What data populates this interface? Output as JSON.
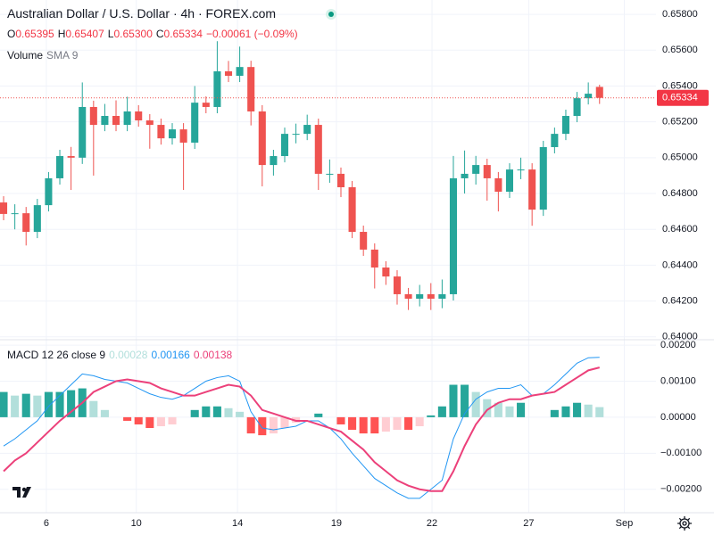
{
  "chart_data": [
    {
      "type": "candlestick",
      "title": "Australian Dollar / U.S. Dollar · 4h · FOREX.com",
      "legend": [
        {
          "key": "O",
          "value": "0.65395"
        },
        {
          "key": "H",
          "value": "0.65407"
        },
        {
          "key": "L",
          "value": "0.65300"
        },
        {
          "key": "C",
          "value": "0.65334"
        }
      ],
      "change": "−0.00061 (−0.09%)",
      "volume_label": "Volume",
      "volume_sma": "SMA 9",
      "last_price_label": "0.65334",
      "up_color": "#26a69a",
      "down_color": "#ef5350",
      "open": [
        0.6475,
        0.64686,
        0.6469,
        0.64586,
        0.64735,
        0.64885,
        0.65009,
        0.65,
        0.65283,
        0.65183,
        0.65233,
        0.65183,
        0.65258,
        0.65208,
        0.65183,
        0.65108,
        0.65158,
        0.65084,
        0.65307,
        0.65283,
        0.65482,
        0.65457,
        0.65506,
        0.65258,
        0.64959,
        0.65009,
        0.65133,
        0.65133,
        0.65183,
        0.6491,
        0.6491,
        0.64835,
        0.64586,
        0.64487,
        0.64387,
        0.64337,
        0.64238,
        0.64213,
        0.64238,
        0.64213,
        0.64238,
        0.64885,
        0.6491,
        0.64959,
        0.64885,
        0.6481,
        0.64934,
        0.64934,
        0.6471,
        0.65059,
        0.65133,
        0.65233,
        0.65332,
        0.65395
      ],
      "high": [
        0.64785,
        0.6474,
        0.64725,
        0.6477,
        0.6492,
        0.65044,
        0.6506,
        0.6542,
        0.65318,
        0.653,
        0.6532,
        0.6534,
        0.65293,
        0.65243,
        0.65218,
        0.65193,
        0.65193,
        0.654,
        0.65342,
        0.6565,
        0.6554,
        0.6562,
        0.65541,
        0.65293,
        0.65044,
        0.65168,
        0.6519,
        0.6524,
        0.65218,
        0.6499,
        0.64945,
        0.6487,
        0.64621,
        0.64522,
        0.64422,
        0.64372,
        0.64273,
        0.6429,
        0.643,
        0.6432,
        0.6501,
        0.6504,
        0.6501,
        0.64994,
        0.6492,
        0.64969,
        0.65,
        0.64969,
        0.65094,
        0.65168,
        0.65268,
        0.65367,
        0.6542,
        0.65407
      ],
      "low": [
        0.64651,
        0.646,
        0.6451,
        0.64551,
        0.647,
        0.6485,
        0.6482,
        0.64965,
        0.649,
        0.65148,
        0.65148,
        0.65148,
        0.65173,
        0.6505,
        0.65073,
        0.65073,
        0.6482,
        0.65049,
        0.65248,
        0.65248,
        0.65422,
        0.65422,
        0.6518,
        0.6484,
        0.649,
        0.64974,
        0.6508,
        0.65098,
        0.6482,
        0.6486,
        0.6478,
        0.64551,
        0.64452,
        0.6427,
        0.6429,
        0.6418,
        0.6415,
        0.6417,
        0.6415,
        0.6416,
        0.64203,
        0.648,
        0.6485,
        0.6476,
        0.647,
        0.64775,
        0.6488,
        0.6462,
        0.64675,
        0.65024,
        0.65098,
        0.65198,
        0.65297,
        0.653
      ],
      "close": [
        0.64686,
        0.6469,
        0.64586,
        0.64735,
        0.64885,
        0.65009,
        0.65,
        0.65283,
        0.65183,
        0.65233,
        0.65183,
        0.65258,
        0.65208,
        0.65183,
        0.65108,
        0.65158,
        0.65084,
        0.65307,
        0.65283,
        0.65482,
        0.65457,
        0.65506,
        0.65258,
        0.64959,
        0.65009,
        0.65133,
        0.65133,
        0.65183,
        0.6491,
        0.6491,
        0.64835,
        0.64586,
        0.64487,
        0.64387,
        0.64337,
        0.64238,
        0.64213,
        0.64238,
        0.64213,
        0.64238,
        0.64885,
        0.6491,
        0.64959,
        0.64885,
        0.6481,
        0.64934,
        0.64934,
        0.6471,
        0.65059,
        0.65133,
        0.65233,
        0.65332,
        0.65357,
        0.65334
      ],
      "ylim": [
        0.63984,
        0.6588
      ],
      "yticks": [
        {
          "value": 0.64,
          "label": "0.64000"
        },
        {
          "value": 0.642,
          "label": "0.64200"
        },
        {
          "value": 0.644,
          "label": "0.64400"
        },
        {
          "value": 0.646,
          "label": "0.64600"
        },
        {
          "value": 0.648,
          "label": "0.64800"
        },
        {
          "value": 0.65,
          "label": "0.65000"
        },
        {
          "value": 0.652,
          "label": "0.65200"
        },
        {
          "value": 0.654,
          "label": "0.65400"
        },
        {
          "value": 0.656,
          "label": "0.65600"
        },
        {
          "value": 0.658,
          "label": "0.65800"
        }
      ],
      "xlim": [
        -0.32,
        58.02
      ],
      "xticks": [
        {
          "value": 3.8,
          "label": "6"
        },
        {
          "value": 11.8,
          "label": "10"
        },
        {
          "value": 20.8,
          "label": "14"
        },
        {
          "value": 29.6,
          "label": "19"
        },
        {
          "value": 38.1,
          "label": "22"
        },
        {
          "value": 46.7,
          "label": "27"
        },
        {
          "value": 55.2,
          "label": "Sep"
        }
      ],
      "grid": true
    },
    {
      "type": "macd",
      "label": "MACD 12 26 close 9",
      "legend_values": [
        "0.00028",
        "0.00166",
        "0.00138"
      ],
      "histogram": {
        "colors": [
          "#26a69a",
          "#b2dfdb",
          "#ff5252",
          "#ffcdd2"
        ],
        "values": [
          0.0007,
          0.0006,
          0.00065,
          0.0006,
          0.0007,
          0.0007,
          0.00075,
          0.0008,
          0.00045,
          0.0002,
          0,
          -0.0001,
          -0.0002,
          -0.0003,
          -0.00025,
          -0.0002,
          0,
          0.0002,
          0.0003,
          0.0003,
          0.00025,
          0.00015,
          -0.00045,
          -0.0005,
          -0.00045,
          -0.0003,
          -0.00015,
          0,
          0.0001,
          0,
          -0.0002,
          -0.00035,
          -0.00045,
          -0.00045,
          -0.0004,
          -0.00035,
          -0.00035,
          -0.00025,
          5e-05,
          0.0003,
          0.0009,
          0.0009,
          0.0007,
          0.0005,
          0.0004,
          0.0003,
          0.0004,
          0,
          0,
          0.0002,
          0.0003,
          0.0004,
          0.00035,
          0.00028
        ]
      },
      "macd": {
        "color": "#2196f3",
        "values": [
          -0.0008,
          -0.0006,
          -0.00035,
          -0.0001,
          0.0003,
          0.0006,
          0.0009,
          0.0012,
          0.00115,
          0.00105,
          0.001,
          0.00095,
          0.0008,
          0.00065,
          0.00055,
          0.0005,
          0.0006,
          0.0008,
          0.001,
          0.0011,
          0.00115,
          0.001,
          0.00015,
          -0.0003,
          -0.00035,
          -0.0003,
          -0.00025,
          -0.0001,
          -0.0001,
          -0.0003,
          -0.0006,
          -0.001,
          -0.00135,
          -0.0017,
          -0.0019,
          -0.0021,
          -0.00225,
          -0.00225,
          -0.002,
          -0.00175,
          -0.0006,
          0.0001,
          0.0005,
          0.0007,
          0.0008,
          0.0008,
          0.0009,
          0.0006,
          0.00065,
          0.0009,
          0.0012,
          0.0015,
          0.00165,
          0.00166
        ]
      },
      "signal": {
        "color": "#ec407a",
        "values": [
          -0.0015,
          -0.0012,
          -0.001,
          -0.0007,
          -0.0004,
          -0.0001,
          0.00015,
          0.0004,
          0.0007,
          0.00085,
          0.001,
          0.00105,
          0.001,
          0.00095,
          0.0008,
          0.0007,
          0.0006,
          0.0006,
          0.0007,
          0.0008,
          0.0009,
          0.00085,
          0.0006,
          0.0002,
          0.0001,
          0,
          -0.0001,
          -0.0001,
          -0.0002,
          -0.0003,
          -0.0004,
          -0.00065,
          -0.0009,
          -0.00125,
          -0.0015,
          -0.00175,
          -0.0019,
          -0.002,
          -0.00205,
          -0.00205,
          -0.0015,
          -0.0008,
          -0.0002,
          0.0002,
          0.0004,
          0.0005,
          0.0005,
          0.0006,
          0.00065,
          0.0007,
          0.0009,
          0.0011,
          0.0013,
          0.00138
        ]
      },
      "ylim": [
        -0.00265,
        0.00215
      ],
      "yticks": [
        {
          "value": -0.002,
          "label": "−0.00200"
        },
        {
          "value": -0.001,
          "label": "−0.00100"
        },
        {
          "value": 0,
          "label": "0.00000"
        },
        {
          "value": 0.001,
          "label": "0.00100"
        },
        {
          "value": 0.002,
          "label": "0.00200"
        }
      ],
      "grid": true
    }
  ]
}
